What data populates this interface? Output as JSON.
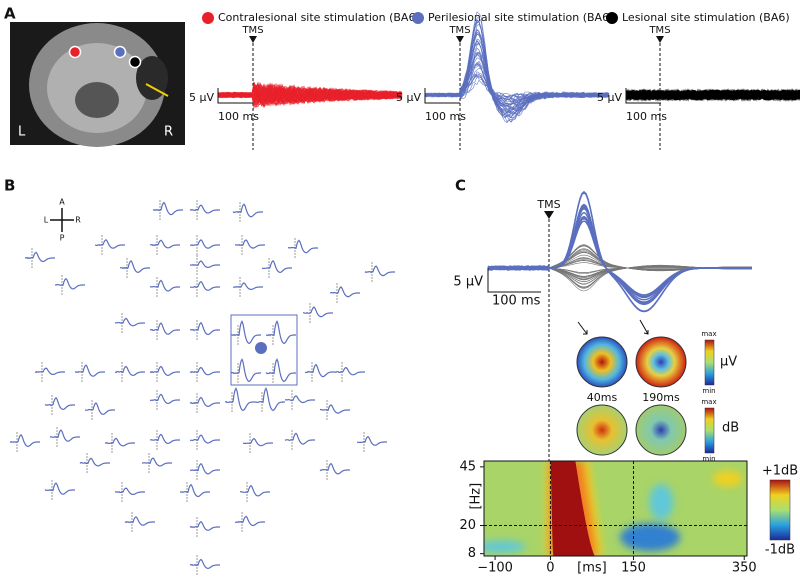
{
  "panel_a": {
    "label": "A",
    "mri_left": "L",
    "mri_right": "R",
    "legend": [
      {
        "name": "Contralesional site stimulation (BA6)",
        "color": "#e8202a"
      },
      {
        "name": "Perilesional site stimulation (BA6)",
        "color": "#5b6fbf"
      },
      {
        "name": "Lesional site stimulation (BA6)",
        "color": "#000000"
      }
    ],
    "plots": [
      {
        "marker": "TMS",
        "amplitude_scale": "5 µV",
        "time_scale": "100 ms"
      },
      {
        "marker": "TMS",
        "amplitude_scale": "5 µV",
        "time_scale": "100 ms"
      },
      {
        "marker": "TMS",
        "amplitude_scale": "5 µV",
        "time_scale": "100 ms"
      }
    ]
  },
  "panel_b": {
    "label": "B",
    "compass": {
      "anterior": "A",
      "posterior": "P",
      "left": "L",
      "right": "R"
    }
  },
  "panel_c": {
    "label": "C",
    "marker": "TMS",
    "amplitude_scale": "5 µV",
    "time_scale": "100 ms",
    "topographies": {
      "latencies": [
        "40ms",
        "190ms"
      ],
      "voltage": {
        "max": "max",
        "min": "min",
        "unit": "µV"
      },
      "power": {
        "max": "max",
        "min": "min",
        "unit": "dB"
      }
    }
  },
  "chart_data": {
    "type": "heatmap",
    "x_label": "[ms]",
    "y_label": "[Hz]",
    "xlim": [
      -120,
      355
    ],
    "ylim": [
      7,
      47.5
    ],
    "xticks": [
      {
        "value": -100,
        "label": "−100"
      },
      0,
      150,
      350
    ],
    "yticks": [
      8,
      20,
      45
    ],
    "reference_lines": {
      "x": [
        0,
        150
      ],
      "y": [
        20
      ]
    },
    "colorbar": {
      "max_label": "+1dB",
      "min_label": "-1dB"
    }
  }
}
